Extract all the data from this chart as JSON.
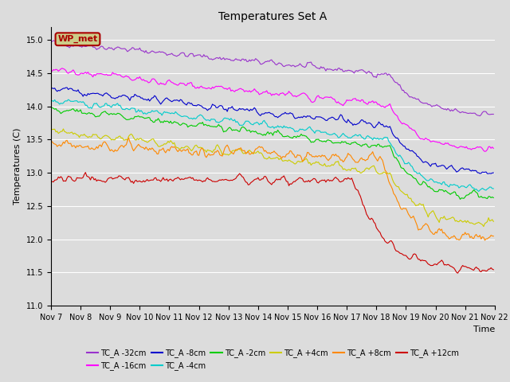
{
  "title": "Temperatures Set A",
  "ylabel": "Temperatures (C)",
  "time_label": "Time",
  "ylim": [
    11.0,
    15.2
  ],
  "xlim": [
    0,
    360
  ],
  "background_color": "#dcdcdc",
  "plot_bg_color": "#dcdcdc",
  "series": [
    {
      "label": "TC_A -32cm",
      "color": "#9933cc",
      "start": 14.97,
      "end": 13.88,
      "noise": 0.045
    },
    {
      "label": "TC_A -16cm",
      "color": "#ff00ff",
      "start": 14.55,
      "end": 13.35,
      "noise": 0.05
    },
    {
      "label": "TC_A -8cm",
      "color": "#0000cc",
      "start": 14.27,
      "end": 13.0,
      "noise": 0.05
    },
    {
      "label": "TC_A -4cm",
      "color": "#00cccc",
      "start": 14.1,
      "end": 12.73,
      "noise": 0.05
    },
    {
      "label": "TC_A -2cm",
      "color": "#00cc00",
      "start": 13.98,
      "end": 12.63,
      "noise": 0.05
    },
    {
      "label": "TC_A +4cm",
      "color": "#cccc00",
      "start": 13.65,
      "end": 12.23,
      "noise": 0.06
    },
    {
      "label": "TC_A +8cm",
      "color": "#ff8800",
      "start": 13.47,
      "end": 12.0,
      "noise": 0.07
    },
    {
      "label": "TC_A +12cm",
      "color": "#cc0000",
      "start": 12.9,
      "end": 11.53,
      "noise": 0.06
    }
  ],
  "wp_met_label": "WP_met",
  "wp_met_color": "#aa0000",
  "wp_met_bg": "#cccc88",
  "n_points": 360,
  "xtick_labels": [
    "Nov 7",
    "Nov 8",
    "Nov 9",
    "Nov 10",
    "Nov 11",
    "Nov 12",
    "Nov 13",
    "Nov 14",
    "Nov 15",
    "Nov 16",
    "Nov 17",
    "Nov 18",
    "Nov 19",
    "Nov 20",
    "Nov 21",
    "Nov 22"
  ],
  "xtick_positions": [
    0,
    24,
    48,
    72,
    96,
    120,
    144,
    168,
    192,
    216,
    240,
    264,
    288,
    312,
    336,
    360
  ]
}
